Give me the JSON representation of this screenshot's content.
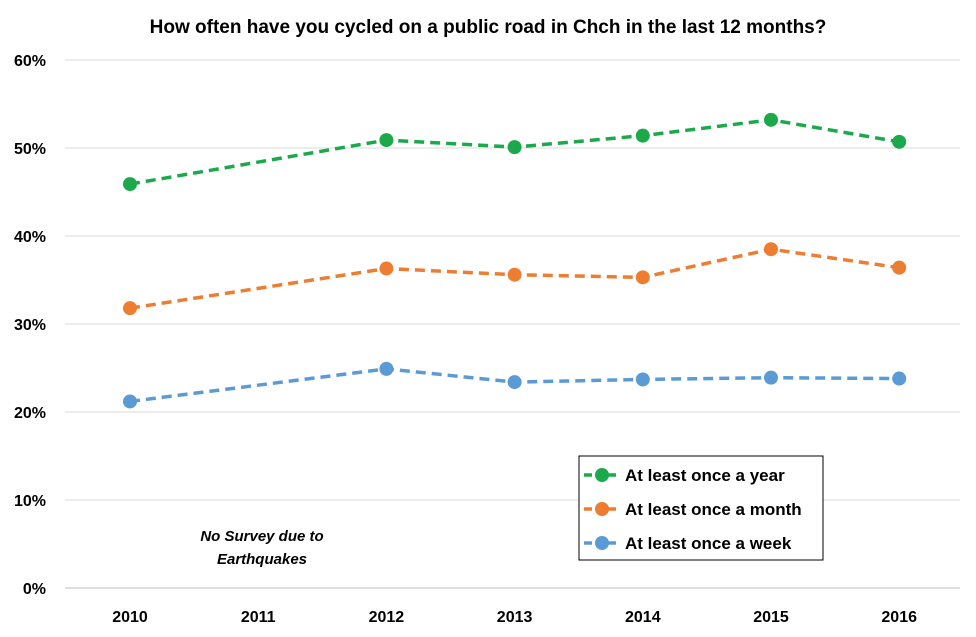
{
  "chart_data": {
    "type": "line",
    "title": "How often have you cycled on a public road in Chch in the last 12 months?",
    "xlabel": "",
    "ylabel": "",
    "categories": [
      "2010",
      "2011",
      "2012",
      "2013",
      "2014",
      "2015",
      "2016"
    ],
    "ylim": [
      0,
      60
    ],
    "yticks": [
      "0%",
      "10%",
      "20%",
      "30%",
      "40%",
      "50%",
      "60%"
    ],
    "grid": "horizontal",
    "legend_position": "bottom-right",
    "annotation": {
      "line1": "No Survey due to",
      "line2": "Earthquakes"
    },
    "series": [
      {
        "name": "At least once a year",
        "color": "#1ba94c",
        "values": [
          45.9,
          null,
          50.9,
          50.1,
          51.4,
          53.2,
          50.7
        ]
      },
      {
        "name": "At least once a month",
        "color": "#ed7d31",
        "values": [
          31.8,
          null,
          36.3,
          35.6,
          35.3,
          38.5,
          36.4
        ]
      },
      {
        "name": "At least once a week",
        "color": "#5b9bd5",
        "values": [
          21.2,
          null,
          24.9,
          23.4,
          23.7,
          23.9,
          23.8
        ]
      }
    ]
  }
}
